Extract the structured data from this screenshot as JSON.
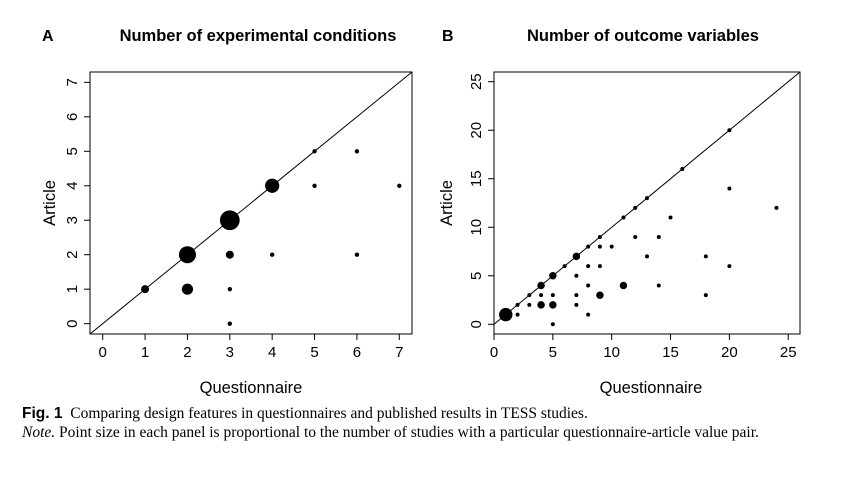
{
  "chart_data": [
    {
      "type": "scatter",
      "panel_label": "A",
      "title": "Number of experimental conditions",
      "xlabel": "Questionnaire",
      "ylabel": "Article",
      "xlim": [
        -0.3,
        7.3
      ],
      "ylim": [
        -0.3,
        7.3
      ],
      "xticks": [
        "0",
        "1",
        "2",
        "3",
        "4",
        "5",
        "6",
        "7"
      ],
      "yticks": [
        "0",
        "1",
        "2",
        "3",
        "4",
        "5",
        "6",
        "7"
      ],
      "diagonal": true,
      "grid": false,
      "points": [
        {
          "x": 1,
          "y": 1,
          "size": 2
        },
        {
          "x": 2,
          "y": 1,
          "size": 3
        },
        {
          "x": 2,
          "y": 2,
          "size": 5
        },
        {
          "x": 3,
          "y": 0,
          "size": 1
        },
        {
          "x": 3,
          "y": 1,
          "size": 1
        },
        {
          "x": 3,
          "y": 2,
          "size": 2
        },
        {
          "x": 3,
          "y": 3,
          "size": 6
        },
        {
          "x": 4,
          "y": 2,
          "size": 1
        },
        {
          "x": 4,
          "y": 4,
          "size": 4
        },
        {
          "x": 5,
          "y": 4,
          "size": 1
        },
        {
          "x": 5,
          "y": 5,
          "size": 1
        },
        {
          "x": 6,
          "y": 2,
          "size": 1
        },
        {
          "x": 6,
          "y": 5,
          "size": 1
        },
        {
          "x": 7,
          "y": 4,
          "size": 1
        }
      ]
    },
    {
      "type": "scatter",
      "panel_label": "B",
      "title": "Number of outcome variables",
      "xlabel": "Questionnaire",
      "ylabel": "Article",
      "xlim": [
        0,
        26
      ],
      "ylim": [
        -1,
        26
      ],
      "xticks": [
        "0",
        "5",
        "10",
        "15",
        "20",
        "25"
      ],
      "yticks": [
        "0",
        "5",
        "10",
        "15",
        "20",
        "25"
      ],
      "diagonal": true,
      "grid": false,
      "points": [
        {
          "x": 1,
          "y": 1,
          "size": 4
        },
        {
          "x": 2,
          "y": 1,
          "size": 1
        },
        {
          "x": 2,
          "y": 2,
          "size": 1
        },
        {
          "x": 3,
          "y": 2,
          "size": 1
        },
        {
          "x": 3,
          "y": 3,
          "size": 1
        },
        {
          "x": 4,
          "y": 2,
          "size": 2
        },
        {
          "x": 4,
          "y": 3,
          "size": 1
        },
        {
          "x": 4,
          "y": 4,
          "size": 2
        },
        {
          "x": 5,
          "y": 0,
          "size": 1
        },
        {
          "x": 5,
          "y": 2,
          "size": 2
        },
        {
          "x": 5,
          "y": 3,
          "size": 1
        },
        {
          "x": 5,
          "y": 5,
          "size": 2
        },
        {
          "x": 6,
          "y": 6,
          "size": 1
        },
        {
          "x": 7,
          "y": 2,
          "size": 1
        },
        {
          "x": 7,
          "y": 3,
          "size": 1
        },
        {
          "x": 7,
          "y": 5,
          "size": 1
        },
        {
          "x": 7,
          "y": 7,
          "size": 2
        },
        {
          "x": 8,
          "y": 1,
          "size": 1
        },
        {
          "x": 8,
          "y": 4,
          "size": 1
        },
        {
          "x": 8,
          "y": 6,
          "size": 1
        },
        {
          "x": 8,
          "y": 8,
          "size": 1
        },
        {
          "x": 9,
          "y": 3,
          "size": 2
        },
        {
          "x": 9,
          "y": 6,
          "size": 1
        },
        {
          "x": 9,
          "y": 8,
          "size": 1
        },
        {
          "x": 9,
          "y": 9,
          "size": 1
        },
        {
          "x": 10,
          "y": 8,
          "size": 1
        },
        {
          "x": 11,
          "y": 4,
          "size": 2
        },
        {
          "x": 11,
          "y": 11,
          "size": 1
        },
        {
          "x": 12,
          "y": 9,
          "size": 1
        },
        {
          "x": 12,
          "y": 12,
          "size": 1
        },
        {
          "x": 13,
          "y": 7,
          "size": 1
        },
        {
          "x": 13,
          "y": 13,
          "size": 1
        },
        {
          "x": 14,
          "y": 4,
          "size": 1
        },
        {
          "x": 14,
          "y": 9,
          "size": 1
        },
        {
          "x": 15,
          "y": 11,
          "size": 1
        },
        {
          "x": 16,
          "y": 16,
          "size": 1
        },
        {
          "x": 18,
          "y": 3,
          "size": 1
        },
        {
          "x": 18,
          "y": 7,
          "size": 1
        },
        {
          "x": 20,
          "y": 6,
          "size": 1
        },
        {
          "x": 20,
          "y": 14,
          "size": 1
        },
        {
          "x": 20,
          "y": 20,
          "size": 1
        },
        {
          "x": 24,
          "y": 12,
          "size": 1
        }
      ]
    }
  ],
  "caption": {
    "fig_label": "Fig. 1",
    "text": "Comparing design features in questionnaires and published results in TESS studies.",
    "note_label": "Note.",
    "note_text": "Point size in each panel is proportional to the number of studies with a particular questionnaire-article value pair."
  }
}
